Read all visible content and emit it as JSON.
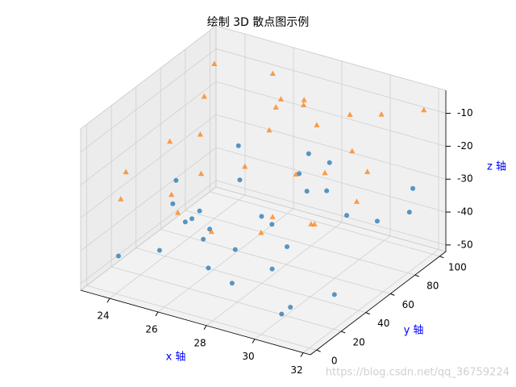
{
  "chart_data": {
    "type": "scatter3d",
    "title": "绘制 3D 散点图示例",
    "x_label": "x 轴",
    "y_label": "y 轴",
    "z_label": "z 轴",
    "watermark": "https://blog.csdn.net/qq_36759224",
    "xlim": [
      22.8,
      32.3
    ],
    "ylim": [
      -5,
      105
    ],
    "zlim": [
      -52,
      -3
    ],
    "xticks": [
      24,
      26,
      28,
      30,
      32
    ],
    "yticks": [
      0,
      20,
      40,
      60,
      80,
      100
    ],
    "zticks": [
      -50,
      -40,
      -30,
      -20,
      -10
    ],
    "grid": true,
    "series": [
      {
        "marker": "o",
        "color": "#1f77b4",
        "x": [
          23.5,
          24.2,
          25.1,
          26.3,
          27.0,
          28.4,
          29.1,
          30.2,
          31.5,
          24.8,
          26.9,
          28.0,
          29.7,
          31.0,
          23.9,
          25.6,
          27.4,
          30.6,
          31.8,
          26.1,
          28.9,
          24.5,
          29.4,
          27.8,
          25.3,
          30.9,
          23.2,
          28.6,
          31.2,
          26.7
        ],
        "y": [
          12,
          45,
          78,
          30,
          90,
          8,
          55,
          20,
          65,
          85,
          40,
          95,
          15,
          50,
          70,
          25,
          60,
          5,
          88,
          35,
          75,
          52,
          33,
          82,
          10,
          42,
          62,
          28,
          97,
          18
        ],
        "z": [
          -45,
          -30,
          -27,
          -48,
          -35,
          -42,
          -26,
          -49,
          -33,
          -40,
          -44,
          -31,
          -37,
          -28,
          -47,
          -34,
          -41,
          -46,
          -29,
          -38,
          -32,
          -43,
          -36,
          -25,
          -39,
          -50,
          -44,
          -27,
          -40,
          -35
        ]
      },
      {
        "marker": "^",
        "color": "#ff7f0e",
        "x": [
          23.4,
          24.6,
          25.8,
          26.5,
          27.3,
          28.2,
          29.5,
          30.4,
          31.6,
          24.0,
          26.0,
          27.7,
          29.0,
          30.8,
          31.9,
          25.2,
          26.8,
          28.7,
          30.1,
          23.8,
          27.1,
          29.8,
          31.3,
          24.3,
          28.5,
          25.5,
          30.5,
          26.2,
          29.2,
          27.9
        ],
        "y": [
          20,
          60,
          15,
          85,
          40,
          70,
          10,
          90,
          55,
          80,
          30,
          5,
          65,
          25,
          95,
          45,
          75,
          35,
          50,
          8,
          92,
          78,
          18,
          38,
          58,
          98,
          68,
          2,
          88,
          48
        ],
        "z": [
          -22,
          -8,
          -28,
          -12,
          -18,
          -6,
          -25,
          -10,
          -15,
          -5,
          -20,
          -27,
          -9,
          -24,
          -7,
          -14,
          -11,
          -29,
          -17,
          -26,
          -13,
          -19,
          -21,
          -16,
          -23,
          -10,
          -30,
          -18,
          -12,
          -8
        ]
      }
    ]
  }
}
